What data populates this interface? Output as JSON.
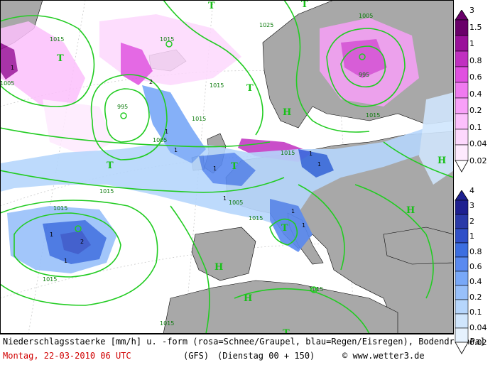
{
  "footer": {
    "line1": "Niederschlagsstaerke [mm/h] u. -form (rosa=Schnee/Graupel, blau=Regen/Eisregen), Bodendr.[hPa]",
    "date": "Montag, 22-03-2010  06 UTC",
    "model": "(GFS)",
    "run": "(Dienstag 00 + 150)",
    "credit": "© www.wetter3.de"
  },
  "legend_snow": {
    "labels": [
      "3",
      "1.5",
      "1",
      "0.8",
      "0.6",
      "0.4",
      "0.2",
      "0.1",
      "0.04",
      "0.02"
    ],
    "colors": [
      "#6a006a",
      "#9a109a",
      "#c030c0",
      "#e050e0",
      "#f07af0",
      "#f8a0f8",
      "#fcc0fc",
      "#fdd8fd",
      "#feeafe"
    ]
  },
  "legend_rain": {
    "labels": [
      "4",
      "3",
      "2",
      "1",
      "0.8",
      "0.6",
      "0.4",
      "0.2",
      "0.1",
      "0.04",
      "0.02"
    ],
    "colors": [
      "#1e2090",
      "#2a3aa8",
      "#3050c8",
      "#3c6ee0",
      "#5a8af0",
      "#78a8f8",
      "#98c0fa",
      "#b6d6fc",
      "#d0e6fd",
      "#e6f2fe"
    ]
  },
  "map": {
    "pressure_labels": [
      "1015",
      "1015",
      "1025",
      "1005",
      "995",
      "995",
      "1005",
      "1015",
      "1005",
      "1015",
      "1005",
      "1015",
      "1015",
      "1015",
      "1015",
      "1015",
      "1015",
      "1015",
      "1015"
    ],
    "high_symbols": [
      "H",
      "H",
      "H",
      "H",
      "H"
    ],
    "low_symbols": [
      "T",
      "T",
      "T",
      "T",
      "T",
      "T",
      "T",
      "T"
    ],
    "cell_labels": [
      "1",
      "2",
      "1",
      "1",
      "1",
      "2",
      "1",
      "1",
      "1",
      "1",
      "1",
      "1",
      "1"
    ]
  }
}
